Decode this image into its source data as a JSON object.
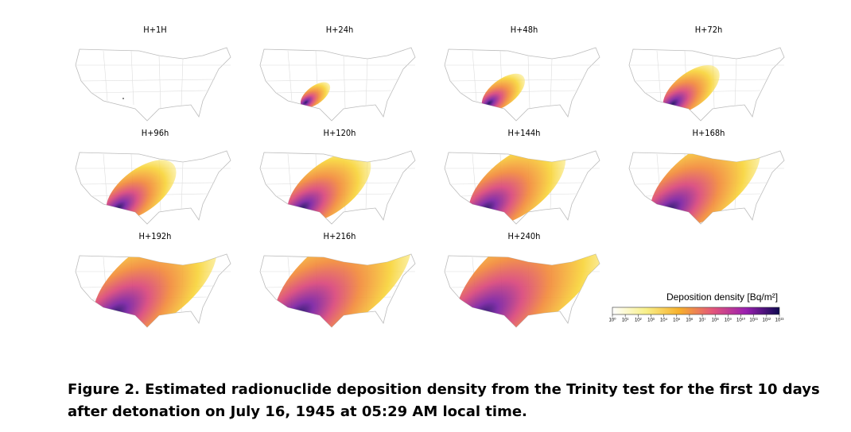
{
  "figure": {
    "panels": [
      "H+1H",
      "H+24h",
      "H+48h",
      "H+72h",
      "H+96h",
      "H+120h",
      "H+144h",
      "H+168h",
      "H+192h",
      "H+216h",
      "H+240h"
    ],
    "colorbar": {
      "title": "Deposition density [Bq/m²]",
      "ticks": [
        "10⁰",
        "10¹",
        "10²",
        "10³",
        "10⁴",
        "10⁵",
        "10⁶",
        "10⁷",
        "10⁸",
        "10⁹",
        "10¹⁰",
        "10¹¹",
        "10¹²",
        "10¹³"
      ]
    },
    "caption": [
      "Figure 2. Estimated radionuclide deposition density from the Trinity test for the first 10 days",
      "after detonation on July 16, 1945 at 05:29 AM local time."
    ]
  }
}
